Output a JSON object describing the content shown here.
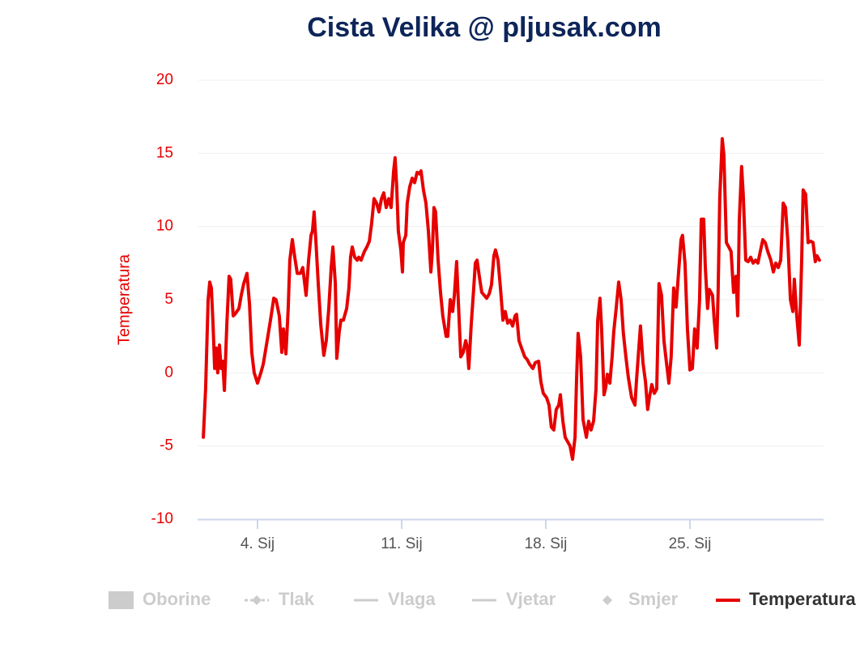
{
  "chart_data": {
    "type": "line",
    "title": "Cista Velika @ pljusak.com",
    "y_axis_title": "Temperatura",
    "x": [
      1.37,
      1.48,
      1.6,
      1.68,
      1.76,
      1.84,
      1.92,
      1.99,
      2.07,
      2.15,
      2.23,
      2.31,
      2.39,
      2.51,
      2.62,
      2.7,
      2.82,
      2.9,
      3.1,
      3.21,
      3.33,
      3.49,
      3.61,
      3.72,
      3.84,
      4.0,
      4.16,
      4.28,
      4.47,
      4.63,
      4.79,
      4.9,
      5.06,
      5.18,
      5.26,
      5.38,
      5.49,
      5.57,
      5.69,
      5.81,
      5.93,
      6.08,
      6.2,
      6.36,
      6.48,
      6.6,
      6.67,
      6.75,
      6.83,
      6.95,
      7.07,
      7.22,
      7.34,
      7.46,
      7.58,
      7.66,
      7.78,
      7.85,
      7.97,
      8.05,
      8.17,
      8.33,
      8.44,
      8.52,
      8.6,
      8.72,
      8.84,
      8.92,
      9.03,
      9.19,
      9.31,
      9.43,
      9.54,
      9.66,
      9.78,
      9.9,
      10.02,
      10.13,
      10.25,
      10.37,
      10.49,
      10.61,
      10.68,
      10.76,
      10.84,
      10.96,
      11.04,
      11.08,
      11.2,
      11.27,
      11.39,
      11.51,
      11.63,
      11.75,
      11.86,
      11.94,
      12.06,
      12.18,
      12.3,
      12.42,
      12.49,
      12.57,
      12.65,
      12.77,
      12.89,
      13.0,
      13.16,
      13.24,
      13.36,
      13.48,
      13.56,
      13.67,
      13.75,
      13.87,
      13.99,
      14.11,
      14.19,
      14.26,
      14.38,
      14.5,
      14.58,
      14.66,
      14.77,
      14.89,
      15.01,
      15.13,
      15.25,
      15.36,
      15.48,
      15.56,
      15.68,
      15.8,
      15.92,
      16.03,
      16.15,
      16.27,
      16.39,
      16.51,
      16.58,
      16.7,
      16.82,
      16.98,
      17.1,
      17.21,
      17.37,
      17.49,
      17.65,
      17.76,
      17.88,
      18.04,
      18.16,
      18.27,
      18.39,
      18.51,
      18.63,
      18.71,
      18.83,
      18.94,
      19.06,
      19.18,
      19.3,
      19.42,
      19.49,
      19.57,
      19.69,
      19.81,
      19.97,
      20.08,
      20.2,
      20.32,
      20.44,
      20.52,
      20.63,
      20.71,
      20.83,
      20.91,
      20.99,
      21.11,
      21.22,
      21.3,
      21.42,
      21.54,
      21.66,
      21.77,
      21.89,
      22.01,
      22.17,
      22.33,
      22.4,
      22.52,
      22.6,
      22.72,
      22.84,
      22.95,
      23.03,
      23.15,
      23.27,
      23.39,
      23.5,
      23.62,
      23.74,
      23.86,
      23.98,
      24.09,
      24.21,
      24.33,
      24.45,
      24.57,
      24.64,
      24.76,
      24.88,
      25.0,
      25.12,
      25.23,
      25.35,
      25.47,
      25.55,
      25.67,
      25.75,
      25.86,
      25.94,
      26.1,
      26.18,
      26.3,
      26.37,
      26.45,
      26.57,
      26.65,
      26.77,
      26.89,
      27.0,
      27.12,
      27.24,
      27.32,
      27.4,
      27.51,
      27.59,
      27.71,
      27.83,
      27.95,
      28.07,
      28.19,
      28.3,
      28.42,
      28.54,
      28.66,
      28.78,
      28.93,
      29.05,
      29.17,
      29.29,
      29.41,
      29.53,
      29.64,
      29.76,
      29.88,
      30.0,
      30.07,
      30.19,
      30.31,
      30.43,
      30.5,
      30.62,
      30.74,
      30.86,
      30.98,
      31.09,
      31.17,
      31.29
    ],
    "series": [
      {
        "name": "Temperatura",
        "color": "#e60000",
        "values": [
          -4.4,
          -1.1,
          5.0,
          6.2,
          5.8,
          3.3,
          0.3,
          1.7,
          0,
          1.9,
          0.3,
          0.8,
          -1.2,
          3.3,
          6.6,
          6.4,
          3.9,
          4.0,
          4.4,
          5.3,
          6.1,
          6.8,
          4.7,
          1.4,
          0,
          -0.7,
          0,
          0.6,
          2.2,
          3.6,
          5.1,
          5.0,
          3.9,
          1.4,
          3.0,
          1.3,
          4.4,
          7.7,
          9.1,
          7.9,
          6.8,
          6.8,
          7.2,
          5.3,
          7.7,
          9.4,
          9.7,
          11.0,
          9.1,
          6.1,
          3.3,
          1.2,
          2.2,
          4.4,
          7.2,
          8.6,
          6.1,
          1.0,
          2.8,
          3.6,
          3.6,
          4.4,
          5.8,
          7.9,
          8.6,
          7.9,
          7.7,
          7.9,
          7.7,
          8.3,
          8.6,
          9.0,
          10.2,
          11.9,
          11.6,
          11.0,
          11.9,
          12.3,
          11.3,
          11.9,
          11.3,
          13.8,
          14.7,
          12.7,
          9.7,
          8.4,
          6.9,
          8.9,
          9.4,
          11.6,
          12.7,
          13.3,
          13.0,
          13.7,
          13.6,
          13.8,
          12.5,
          11.6,
          9.7,
          6.9,
          8.3,
          11.3,
          11.0,
          7.7,
          5.5,
          3.9,
          2.5,
          2.5,
          5.0,
          4.2,
          5.3,
          7.6,
          5.0,
          1.1,
          1.4,
          2.2,
          1.7,
          0.3,
          3.3,
          5.8,
          7.5,
          7.7,
          6.6,
          5.5,
          5.3,
          5.1,
          5.4,
          6.0,
          8.0,
          8.4,
          7.7,
          5.8,
          3.6,
          4.2,
          3.4,
          3.6,
          3.2,
          3.9,
          4.0,
          2.2,
          1.7,
          1.1,
          0.9,
          0.6,
          0.3,
          0.7,
          0.8,
          -0.6,
          -1.4,
          -1.7,
          -2.2,
          -3.7,
          -3.9,
          -2.5,
          -2.2,
          -1.5,
          -3.3,
          -4.4,
          -4.7,
          -5.0,
          -5.9,
          -4.4,
          -0.6,
          2.7,
          1.1,
          -3.2,
          -4.4,
          -3.3,
          -3.9,
          -3.3,
          -1.1,
          3.6,
          5.1,
          3.0,
          -1.5,
          -1.0,
          -0.1,
          -0.7,
          1.1,
          2.8,
          4.4,
          6.2,
          5.0,
          2.7,
          1.1,
          -0.3,
          -1.7,
          -2.2,
          -0.6,
          1.7,
          3.2,
          0.7,
          -0.6,
          -2.5,
          -1.7,
          -0.8,
          -1.4,
          -1.1,
          6.1,
          5.3,
          2.2,
          0.7,
          -0.7,
          1.1,
          5.8,
          4.5,
          6.9,
          9.1,
          9.4,
          7.5,
          3.0,
          0.2,
          0.3,
          3.0,
          1.7,
          5.0,
          10.5,
          10.5,
          7.2,
          4.4,
          5.7,
          5.3,
          3.6,
          1.7,
          5.5,
          11.9,
          16.0,
          14.9,
          8.9,
          8.6,
          8.3,
          5.5,
          6.6,
          3.9,
          10.5,
          14.1,
          12.2,
          7.7,
          7.6,
          7.9,
          7.5,
          7.7,
          7.5,
          8.3,
          9.1,
          8.9,
          8.3,
          7.7,
          6.9,
          7.5,
          7.2,
          7.7,
          11.6,
          11.3,
          8.9,
          5.0,
          4.2,
          6.4,
          3.9,
          1.9,
          7.7,
          12.5,
          12.2,
          8.9,
          9.0,
          8.9,
          7.6,
          8.0,
          7.7
        ]
      }
    ],
    "hidden_series": [
      {
        "name": "Oborine",
        "symbol": "area"
      },
      {
        "name": "Tlak",
        "symbol": "line-diamond"
      },
      {
        "name": "Vlaga",
        "symbol": "line"
      },
      {
        "name": "Vjetar",
        "symbol": "line"
      },
      {
        "name": "Smjer",
        "symbol": "diamond"
      }
    ],
    "hidden_color": "#cccccc",
    "xlim": [
      1.09,
      31.49
    ],
    "xticks": [
      {
        "value": 4,
        "label": "4. Sij"
      },
      {
        "value": 11,
        "label": "11. Sij"
      },
      {
        "value": 18,
        "label": "18. Sij"
      },
      {
        "value": 25,
        "label": "25. Sij"
      }
    ],
    "ylim": [
      -10,
      20
    ],
    "yticks": [
      -10,
      -5,
      0,
      5,
      10,
      15,
      20
    ],
    "grid": true
  }
}
